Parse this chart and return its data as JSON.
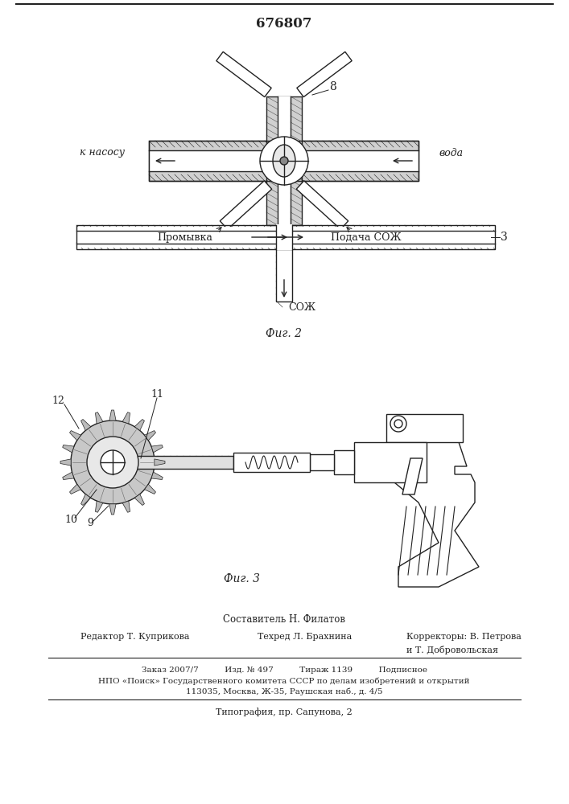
{
  "patent_number": "676807",
  "background_color": "#ffffff",
  "fig_width": 7.07,
  "fig_height": 10.0,
  "composer": "Составитель Н. Филатов",
  "editor": "Редактор Т. Куприкова",
  "techred": "Техред Л. Брахнина",
  "correctors": "Корректоры: В. Петрова",
  "correctors2": "и Т. Добровольская",
  "order_line": "Заказ 2007/7          Изд. № 497          Тираж 1139          Подписное",
  "npo_line": "НПО «Поиск» Государственного комитета СССР по делам изобретений и открытий",
  "address_line": "113035, Москва, Ж-35, Раушская наб., д. 4/5",
  "typography_line": "Типография, пр. Сапунова, 2",
  "fig2_label": "Фиг. 2",
  "fig3_label": "Фиг. 3",
  "label_k_nasosu": "к насосу",
  "label_voda": "вода",
  "label_promyvka": "Промывка",
  "label_podacha_soj": "Подача СОЖ",
  "label_soj": "СОЖ",
  "label_8": "8",
  "label_3": "3",
  "label_9": "9",
  "label_10": "10",
  "label_11": "11",
  "label_12": "12"
}
